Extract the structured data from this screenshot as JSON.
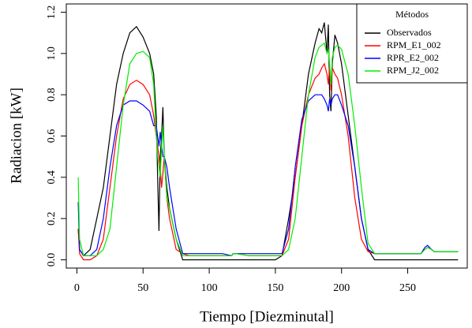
{
  "chart_data": {
    "type": "line",
    "xlabel": "Tiempo [Diezminutal]",
    "ylabel": "Radiacion [kW]",
    "legend_title": "Métodos",
    "legend": "top-right",
    "xlim": [
      -8,
      295
    ],
    "ylim": [
      -0.04,
      1.24
    ],
    "xticks": [
      0,
      50,
      100,
      150,
      200,
      250
    ],
    "yticks": [
      {
        "value": 0,
        "label": "0.0"
      },
      0.2,
      0.4,
      0.6,
      0.8,
      {
        "value": 1,
        "label": "1.0"
      },
      1.2
    ],
    "x": [
      1,
      2,
      5,
      10,
      15,
      20,
      25,
      30,
      35,
      40,
      45,
      50,
      55,
      58,
      60,
      61,
      62,
      63,
      64,
      65,
      66,
      68,
      70,
      75,
      80,
      85,
      90,
      100,
      110,
      117,
      118,
      120,
      130,
      140,
      150,
      155,
      160,
      165,
      170,
      175,
      180,
      183,
      185,
      187,
      189,
      190,
      191,
      192,
      193,
      195,
      197,
      200,
      205,
      210,
      215,
      220,
      225,
      230,
      240,
      250,
      260,
      263,
      265,
      268,
      270,
      280,
      288
    ],
    "series": [
      {
        "name": "Observados",
        "color": "#000000",
        "values": [
          0.15,
          0.05,
          0.02,
          0.05,
          0.2,
          0.35,
          0.6,
          0.85,
          1.0,
          1.1,
          1.13,
          1.08,
          1.0,
          0.9,
          0.7,
          0.4,
          0.14,
          0.5,
          0.6,
          0.74,
          0.5,
          0.35,
          0.25,
          0.1,
          0.0,
          0,
          0,
          0,
          0,
          0,
          0,
          0,
          0,
          0,
          0,
          0.02,
          0.2,
          0.4,
          0.65,
          0.9,
          1.05,
          1.12,
          1.1,
          1.15,
          1.0,
          1.14,
          0.8,
          0.72,
          0.95,
          1.09,
          1.05,
          0.95,
          0.7,
          0.45,
          0.2,
          0.05,
          0,
          0,
          0,
          0,
          0,
          0,
          0,
          0,
          0,
          0,
          0
        ]
      },
      {
        "name": "RPM_E1_002",
        "color": "#ff0000",
        "values": [
          0.15,
          0.03,
          0.0,
          0.0,
          0.02,
          0.1,
          0.35,
          0.6,
          0.78,
          0.85,
          0.87,
          0.85,
          0.8,
          0.7,
          0.6,
          0.55,
          0.5,
          0.45,
          0.35,
          0.42,
          0.5,
          0.3,
          0.2,
          0.05,
          0.03,
          0.02,
          0.02,
          0.02,
          0.02,
          0.02,
          0.03,
          0.03,
          0.02,
          0.02,
          0.02,
          0.02,
          0.1,
          0.4,
          0.65,
          0.8,
          0.88,
          0.9,
          0.93,
          0.95,
          0.9,
          0.85,
          0.95,
          0.82,
          0.93,
          0.9,
          0.88,
          0.8,
          0.6,
          0.3,
          0.1,
          0.04,
          0.03,
          0.03,
          0.03,
          0.03,
          0.03,
          0.05,
          0.06,
          0.05,
          0.04,
          0.04,
          0.04
        ]
      },
      {
        "name": "RPR_E2_002",
        "color": "#0000ff",
        "values": [
          0.28,
          0.05,
          0.02,
          0.02,
          0.05,
          0.2,
          0.45,
          0.65,
          0.75,
          0.77,
          0.77,
          0.75,
          0.72,
          0.65,
          0.65,
          0.6,
          0.55,
          0.62,
          0.55,
          0.5,
          0.5,
          0.45,
          0.35,
          0.15,
          0.03,
          0.03,
          0.03,
          0.03,
          0.03,
          0.02,
          0.03,
          0.03,
          0.03,
          0.03,
          0.03,
          0.03,
          0.15,
          0.45,
          0.68,
          0.77,
          0.8,
          0.8,
          0.8,
          0.78,
          0.75,
          0.72,
          0.78,
          0.75,
          0.78,
          0.8,
          0.8,
          0.75,
          0.65,
          0.45,
          0.2,
          0.05,
          0.03,
          0.03,
          0.03,
          0.03,
          0.03,
          0.06,
          0.07,
          0.05,
          0.04,
          0.04,
          0.04
        ]
      },
      {
        "name": "RPM_J2_002",
        "color": "#00ee00",
        "values": [
          0.4,
          0.1,
          0.02,
          0.02,
          0.02,
          0.05,
          0.15,
          0.45,
          0.75,
          0.95,
          1.0,
          1.01,
          0.98,
          0.85,
          0.6,
          0.5,
          0.45,
          0.4,
          0.55,
          0.65,
          0.5,
          0.3,
          0.25,
          0.1,
          0.02,
          0.02,
          0.02,
          0.02,
          0.02,
          0.02,
          0.03,
          0.03,
          0.02,
          0.02,
          0.02,
          0.02,
          0.05,
          0.2,
          0.5,
          0.8,
          0.98,
          1.03,
          1.04,
          1.05,
          1.0,
          1.02,
          0.95,
          0.85,
          0.98,
          1.03,
          1.04,
          1.02,
          0.9,
          0.65,
          0.35,
          0.08,
          0.03,
          0.03,
          0.03,
          0.03,
          0.03,
          0.05,
          0.06,
          0.05,
          0.04,
          0.04,
          0.04
        ]
      }
    ]
  }
}
